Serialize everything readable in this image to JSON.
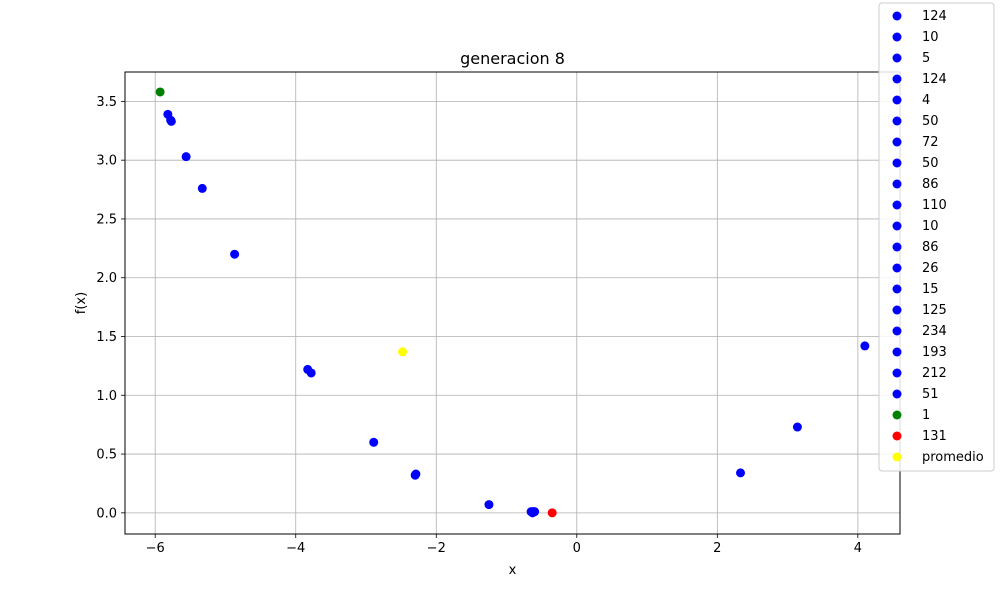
{
  "chart_data": {
    "type": "scatter",
    "title": "generacion 8",
    "xlabel": "x",
    "ylabel": "f(x)",
    "xlim": [
      -6.43,
      4.6
    ],
    "ylim": [
      -0.18,
      3.75
    ],
    "xticks": [
      -6,
      -4,
      -2,
      0,
      2,
      4
    ],
    "xtick_labels": [
      "−6",
      "−4",
      "−2",
      "0",
      "2",
      "4"
    ],
    "yticks": [
      0.0,
      0.5,
      1.0,
      1.5,
      2.0,
      2.5,
      3.0,
      3.5
    ],
    "ytick_labels": [
      "0.0",
      "0.5",
      "1.0",
      "1.5",
      "2.0",
      "2.5",
      "3.0",
      "3.5"
    ],
    "grid": true,
    "legend_position": "top-right (outside)",
    "series": [
      {
        "name": "124",
        "color": "#0000ff",
        "points": [
          [
            -5.82,
            3.39
          ]
        ]
      },
      {
        "name": "10",
        "color": "#0000ff",
        "points": [
          [
            -5.78,
            3.34
          ]
        ]
      },
      {
        "name": "5",
        "color": "#0000ff",
        "points": [
          [
            -5.77,
            3.33
          ]
        ]
      },
      {
        "name": "124",
        "color": "#0000ff",
        "points": [
          [
            -5.56,
            3.03
          ]
        ]
      },
      {
        "name": "4",
        "color": "#0000ff",
        "points": [
          [
            -5.33,
            2.76
          ]
        ]
      },
      {
        "name": "50",
        "color": "#0000ff",
        "points": [
          [
            -4.87,
            2.2
          ]
        ]
      },
      {
        "name": "72",
        "color": "#0000ff",
        "points": [
          [
            -3.83,
            1.22
          ]
        ]
      },
      {
        "name": "50",
        "color": "#0000ff",
        "points": [
          [
            -3.78,
            1.19
          ]
        ]
      },
      {
        "name": "86",
        "color": "#0000ff",
        "points": [
          [
            -2.89,
            0.6
          ]
        ]
      },
      {
        "name": "110",
        "color": "#0000ff",
        "points": [
          [
            -2.29,
            0.33
          ]
        ]
      },
      {
        "name": "10",
        "color": "#0000ff",
        "points": [
          [
            -2.3,
            0.32
          ]
        ]
      },
      {
        "name": "86",
        "color": "#0000ff",
        "points": [
          [
            -1.25,
            0.07
          ]
        ]
      },
      {
        "name": "26",
        "color": "#0000ff",
        "points": [
          [
            -0.65,
            0.01
          ]
        ]
      },
      {
        "name": "15",
        "color": "#0000ff",
        "points": [
          [
            -0.6,
            0.01
          ]
        ]
      },
      {
        "name": "125",
        "color": "#0000ff",
        "points": [
          [
            -0.62,
            0.01
          ]
        ]
      },
      {
        "name": "234",
        "color": "#0000ff",
        "points": [
          [
            2.33,
            0.34
          ]
        ]
      },
      {
        "name": "193",
        "color": "#0000ff",
        "points": [
          [
            3.14,
            0.73
          ]
        ]
      },
      {
        "name": "212",
        "color": "#0000ff",
        "points": [
          [
            4.1,
            1.42
          ]
        ]
      },
      {
        "name": "51",
        "color": "#0000ff",
        "points": [
          [
            -0.63,
            0.0
          ]
        ]
      },
      {
        "name": "1",
        "color": "#008000",
        "points": [
          [
            -5.93,
            3.58
          ]
        ]
      },
      {
        "name": "131",
        "color": "#ff0000",
        "points": [
          [
            -0.35,
            0.0
          ]
        ]
      },
      {
        "name": "promedio",
        "color": "#ffff00",
        "points": [
          [
            -2.48,
            1.37
          ]
        ]
      }
    ]
  }
}
